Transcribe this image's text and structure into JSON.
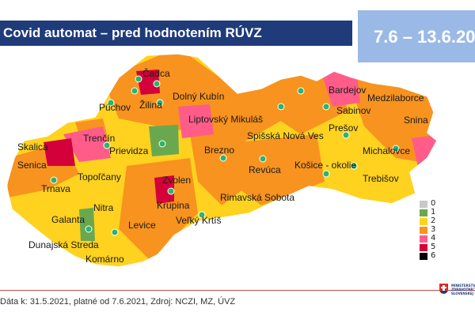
{
  "header": {
    "title": "Covid automat – pred hodnotením RÚVZ",
    "date_range": "7.6 – 13.6.20"
  },
  "legend": {
    "items": [
      {
        "label": "0",
        "color": "#c8c8c8"
      },
      {
        "label": "1",
        "color": "#6aa84f"
      },
      {
        "label": "2",
        "color": "#ffd21f"
      },
      {
        "label": "3",
        "color": "#f7931e"
      },
      {
        "label": "4",
        "color": "#ff5c8a"
      },
      {
        "label": "5",
        "color": "#d4003a"
      },
      {
        "label": "6",
        "color": "#000000"
      }
    ]
  },
  "map": {
    "place_labels": [
      "Čadca",
      "Žilina",
      "Dolný Kubín",
      "Púchov",
      "Bardejov",
      "Medzilaborce",
      "Sabinov",
      "Snina",
      "Liptovský Mikuláš",
      "Trenčín",
      "Prešov",
      "Skalica",
      "Prievidza",
      "Spišská Nová Ves",
      "Michalovce",
      "Senica",
      "Brezno",
      "Košice - okolie",
      "Topoľčany",
      "Trebišov",
      "Trnava",
      "Zvolen",
      "Revúca",
      "Rimavská Sobota",
      "Nitra",
      "Krupina",
      "Galanta",
      "Levice",
      "Veľký Krtíš",
      "Dunajská Streda",
      "Komárno"
    ]
  },
  "footer": {
    "source": "Dáta k: 31.5.2021, platné od 7.6.2021, Zdroj: NCZI, MZ, ÚVZ",
    "ministry": "MINISTERSTVO ZDRAVOTNÍCTVA SLOVENSKEJ"
  }
}
